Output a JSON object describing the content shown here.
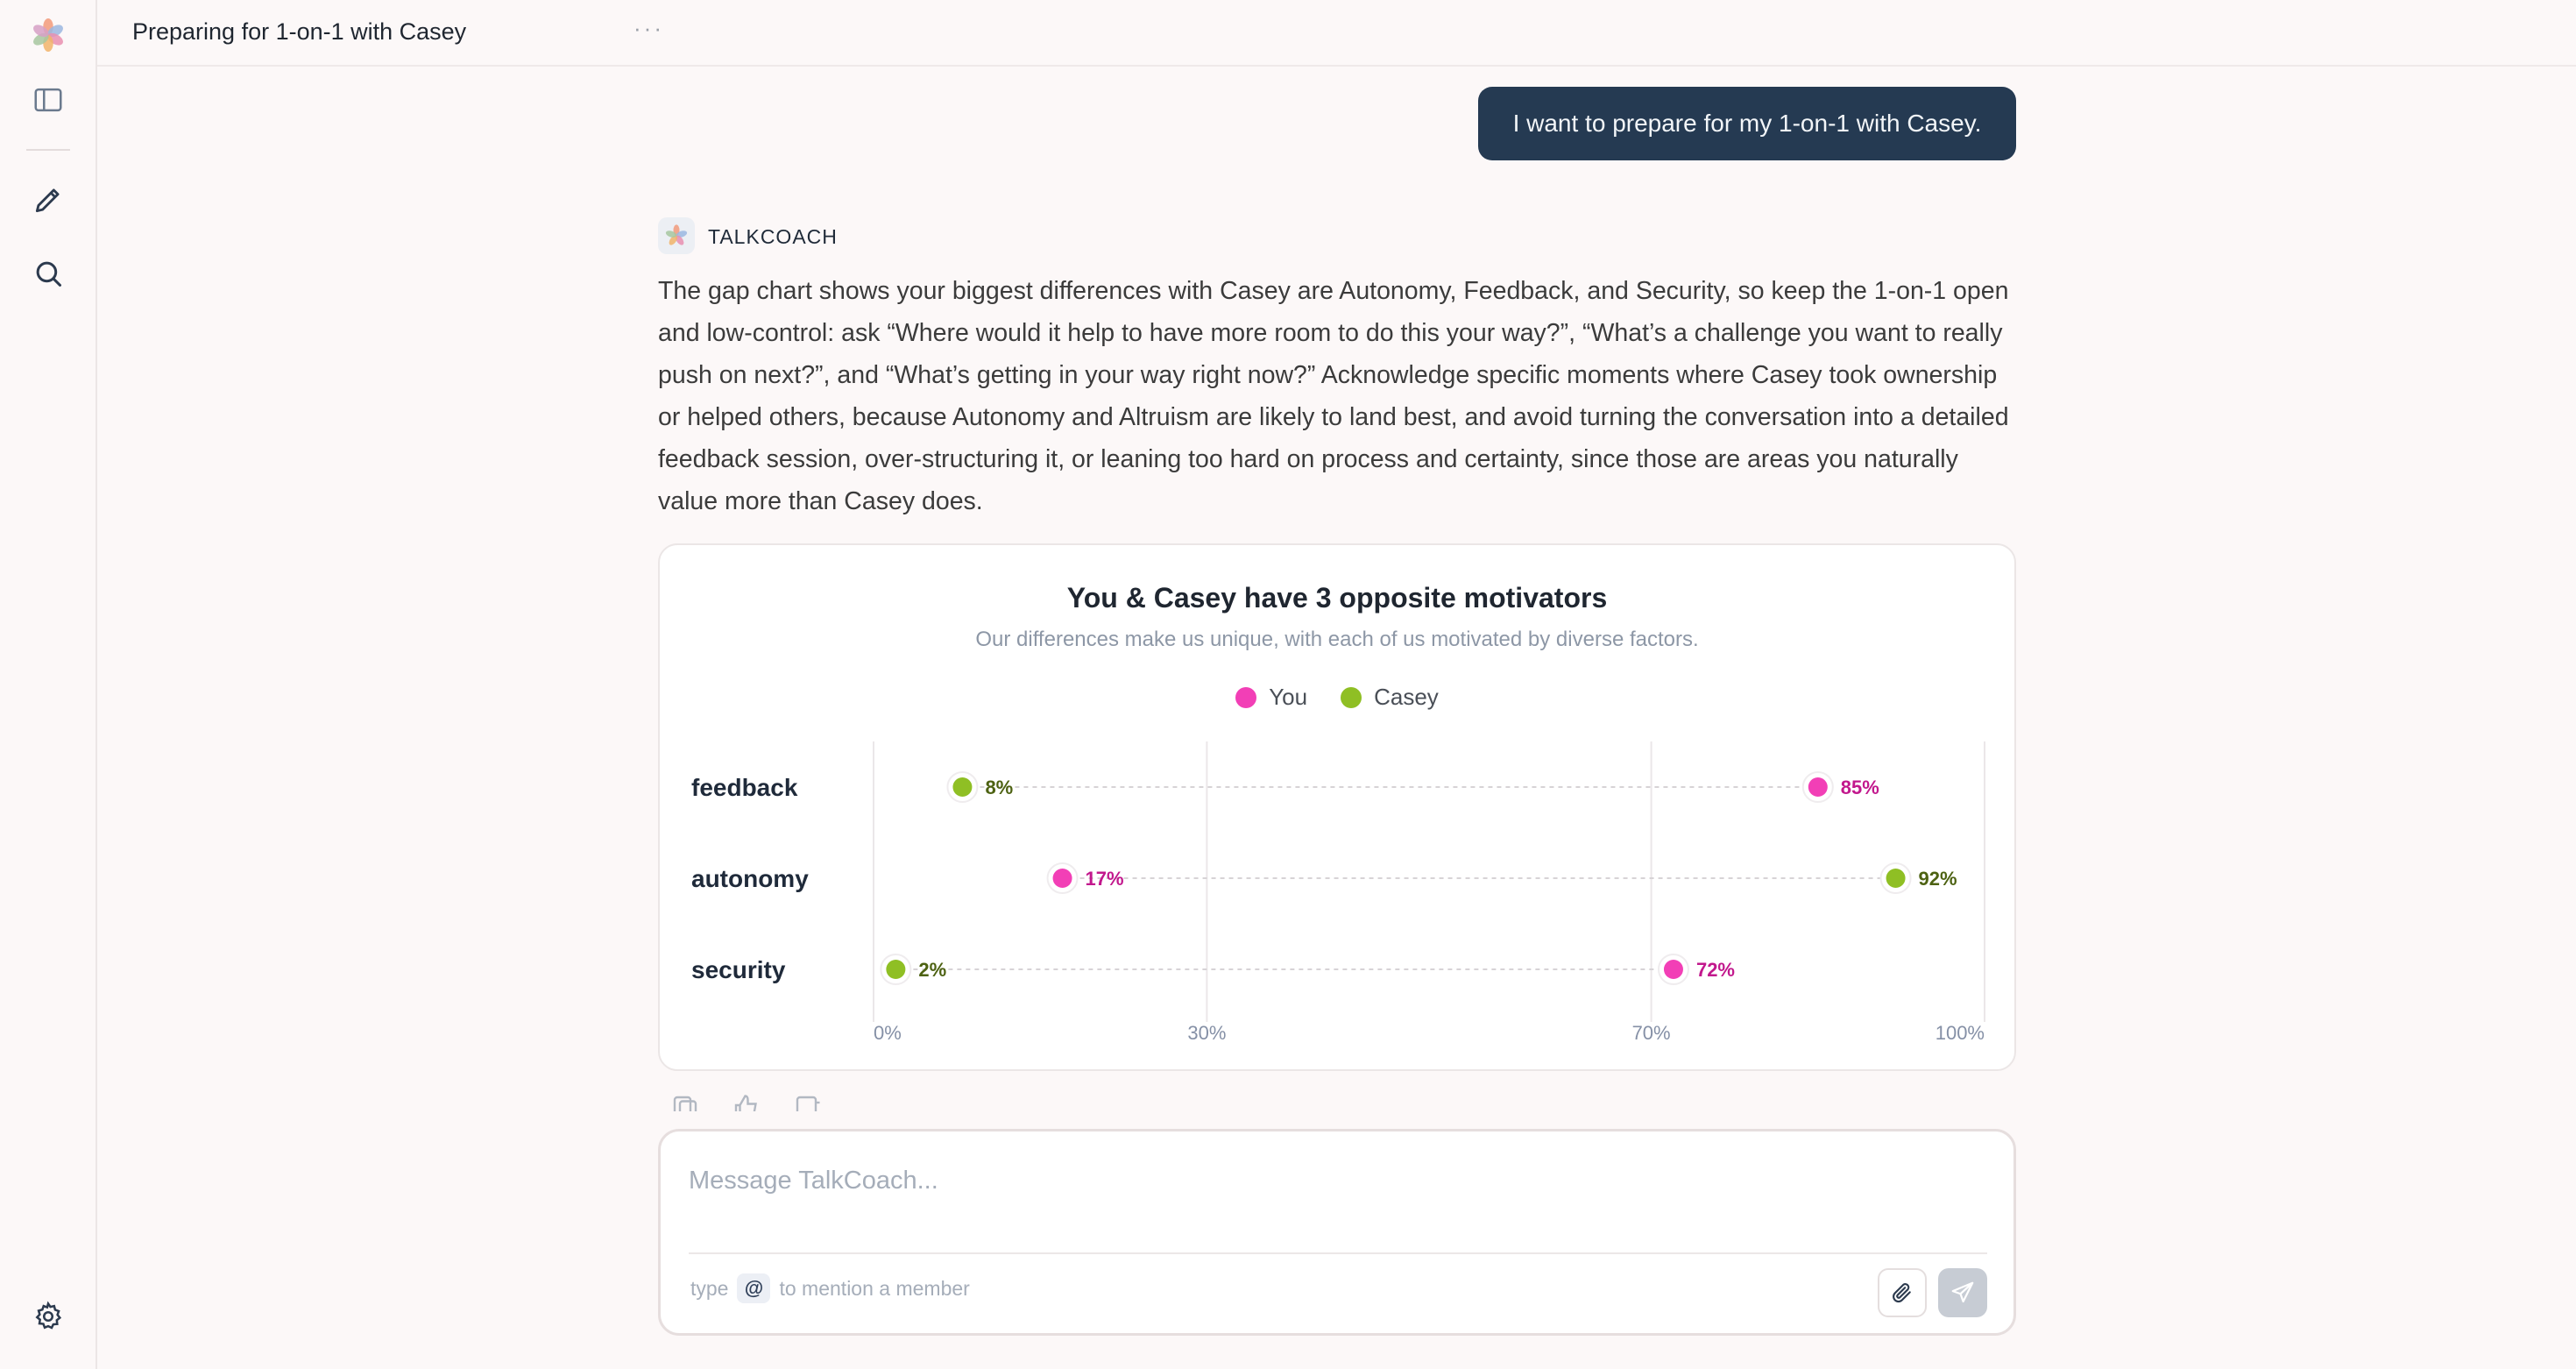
{
  "app": {
    "logo_icon": "flower-logo-icon"
  },
  "sidebar": {
    "items": [
      {
        "name": "toggle-sidebar",
        "icon": "sidebar-panel-icon"
      },
      {
        "name": "new-chat",
        "icon": "pencil-icon"
      },
      {
        "name": "search",
        "icon": "search-icon"
      },
      {
        "name": "settings",
        "icon": "gear-icon"
      }
    ]
  },
  "header": {
    "title": "Preparing for 1-on-1 with Casey",
    "more_label": "···"
  },
  "messages": {
    "user": "I want to prepare for my 1-on-1 with Casey.",
    "assistant_name": "TALKCOACH",
    "assistant_text": "The gap chart shows your biggest differences with Casey are Autonomy, Feedback, and Security, so keep the 1-on-1 open and low-control: ask “Where would it help to have more room to do this your way?”, “What’s a challenge you want to really push on next?”, and “What’s getting in your way right now?” Acknowledge specific moments where Casey took ownership or helped others, because Autonomy and Altruism are likely to land best, and avoid turning the conversation into a detailed feedback session, over-structuring it, or leaning too hard on process and certainty, since those are areas you naturally value more than Casey does."
  },
  "chart_data": {
    "type": "scatter",
    "title": "You & Casey have 3 opposite motivators",
    "subtitle": "Our differences make us unique, with each of us motivated by diverse factors.",
    "categories": [
      "feedback",
      "autonomy",
      "security"
    ],
    "series": [
      {
        "name": "You",
        "color": "#f23fb6",
        "label_color": "#c2188d",
        "values": [
          85,
          17,
          72
        ]
      },
      {
        "name": "Casey",
        "color": "#8fbf24",
        "label_color": "#4d6212",
        "values": [
          8,
          92,
          2
        ]
      }
    ],
    "x_ticks": [
      0,
      30,
      70,
      100
    ],
    "x_tick_labels": [
      "0%",
      "30%",
      "70%",
      "100%"
    ],
    "xlim": [
      0,
      100
    ],
    "value_suffix": "%",
    "grid": true,
    "legend": "top-center"
  },
  "composer": {
    "placeholder": "Message TalkCoach...",
    "hint_before": "type",
    "hint_chip": "@",
    "hint_after": "to mention a member"
  }
}
